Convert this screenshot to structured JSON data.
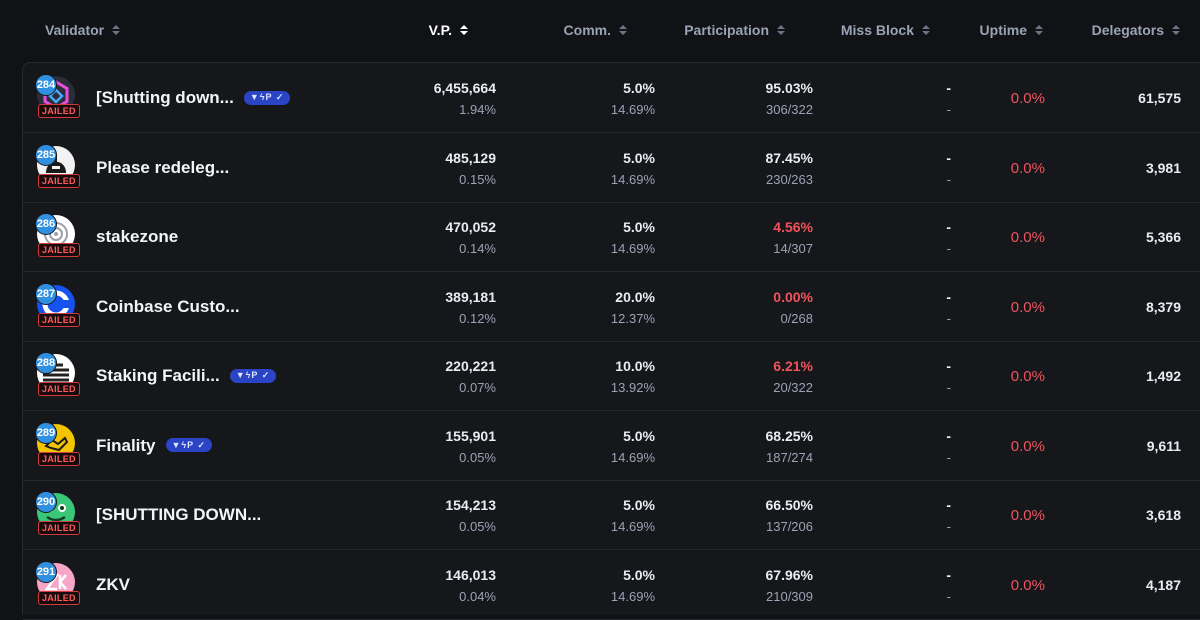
{
  "columns": [
    {
      "label": "Validator"
    },
    {
      "label": "V.P."
    },
    {
      "label": "Comm."
    },
    {
      "label": "Participation"
    },
    {
      "label": "Miss Block"
    },
    {
      "label": "Uptime"
    },
    {
      "label": "Delegators"
    }
  ],
  "jailed_label": "JAILED",
  "rows": [
    {
      "rank": "284",
      "name": "[Shutting down...",
      "verified": true,
      "vp": "6,455,664",
      "vp_pct": "1.94%",
      "comm": "5.0%",
      "comm_max": "14.69%",
      "part": "95.03%",
      "part_red": false,
      "part_ratio": "306/322",
      "miss": "-",
      "miss_sub": "-",
      "uptime": "0.0%",
      "delegators": "61,575"
    },
    {
      "rank": "285",
      "name": "Please redeleg...",
      "verified": false,
      "vp": "485,129",
      "vp_pct": "0.15%",
      "comm": "5.0%",
      "comm_max": "14.69%",
      "part": "87.45%",
      "part_red": false,
      "part_ratio": "230/263",
      "miss": "-",
      "miss_sub": "-",
      "uptime": "0.0%",
      "delegators": "3,981"
    },
    {
      "rank": "286",
      "name": "stakezone",
      "verified": false,
      "vp": "470,052",
      "vp_pct": "0.14%",
      "comm": "5.0%",
      "comm_max": "14.69%",
      "part": "4.56%",
      "part_red": true,
      "part_ratio": "14/307",
      "miss": "-",
      "miss_sub": "-",
      "uptime": "0.0%",
      "delegators": "5,366"
    },
    {
      "rank": "287",
      "name": "Coinbase Custo...",
      "verified": false,
      "vp": "389,181",
      "vp_pct": "0.12%",
      "comm": "20.0%",
      "comm_max": "12.37%",
      "part": "0.00%",
      "part_red": true,
      "part_ratio": "0/268",
      "miss": "-",
      "miss_sub": "-",
      "uptime": "0.0%",
      "delegators": "8,379"
    },
    {
      "rank": "288",
      "name": "Staking Facili...",
      "verified": true,
      "vp": "220,221",
      "vp_pct": "0.07%",
      "comm": "10.0%",
      "comm_max": "13.92%",
      "part": "6.21%",
      "part_red": true,
      "part_ratio": "20/322",
      "miss": "-",
      "miss_sub": "-",
      "uptime": "0.0%",
      "delegators": "1,492"
    },
    {
      "rank": "289",
      "name": "Finality",
      "verified": true,
      "vp": "155,901",
      "vp_pct": "0.05%",
      "comm": "5.0%",
      "comm_max": "14.69%",
      "part": "68.25%",
      "part_red": false,
      "part_ratio": "187/274",
      "miss": "-",
      "miss_sub": "-",
      "uptime": "0.0%",
      "delegators": "9,611"
    },
    {
      "rank": "290",
      "name": "[SHUTTING DOWN...",
      "verified": false,
      "vp": "154,213",
      "vp_pct": "0.05%",
      "comm": "5.0%",
      "comm_max": "14.69%",
      "part": "66.50%",
      "part_red": false,
      "part_ratio": "137/206",
      "miss": "-",
      "miss_sub": "-",
      "uptime": "0.0%",
      "delegators": "3,618"
    },
    {
      "rank": "291",
      "name": "ZKV",
      "verified": false,
      "vp": "146,013",
      "vp_pct": "0.04%",
      "comm": "5.0%",
      "comm_max": "14.69%",
      "part": "67.96%",
      "part_red": false,
      "part_ratio": "210/309",
      "miss": "-",
      "miss_sub": "-",
      "uptime": "0.0%",
      "delegators": "4,187"
    }
  ],
  "avatars": [
    {
      "icon": "hexagon-logo-icon",
      "bg": "#2a2e38",
      "fg": "#e84de0"
    },
    {
      "icon": "helmet-logo-icon",
      "bg": "#f2f2f2",
      "fg": "#1a1a1a"
    },
    {
      "icon": "stakezone-logo-icon",
      "bg": "#ffffff",
      "fg": "#9aa0a8"
    },
    {
      "icon": "coinbase-logo-icon",
      "bg": "#1652f0",
      "fg": "#ffffff"
    },
    {
      "icon": "staking-facilities-logo-icon",
      "bg": "#ffffff",
      "fg": "#222222"
    },
    {
      "icon": "finality-logo-icon",
      "bg": "#f4c400",
      "fg": "#1a1a1a"
    },
    {
      "icon": "frog-logo-icon",
      "bg": "#3ac878",
      "fg": "#0f3d22"
    },
    {
      "icon": "zkv-logo-icon",
      "bg": "#f7a6c8",
      "fg": "#ffffff"
    }
  ],
  "colors": {
    "background": "#111215",
    "row_bg": "#16171b",
    "rank_badge": "#2f8fe0",
    "jailed": "#f0535d",
    "verified_badge": "#2a44c5",
    "negative": "#f0535d"
  }
}
